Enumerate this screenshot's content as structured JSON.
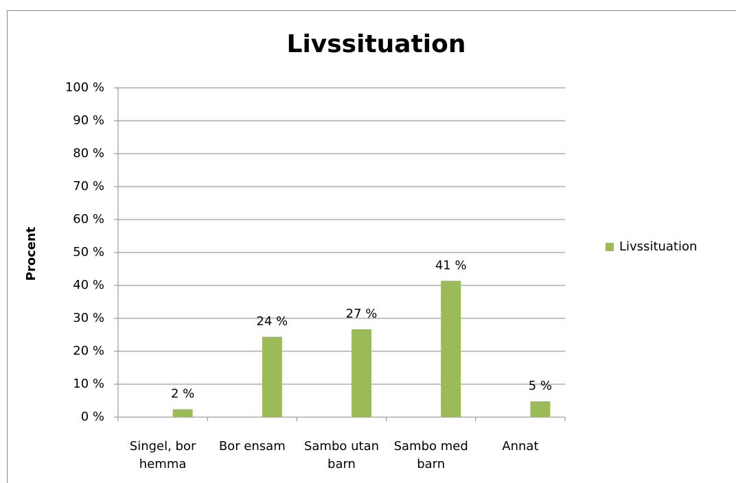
{
  "chart_data": {
    "type": "bar",
    "title": "Livssituation",
    "y_label": "Procent",
    "categories": [
      "Singel, bor hemma",
      "Bor ensam",
      "Sambo utan barn",
      "Sambo med barn",
      "Annat"
    ],
    "series": [
      {
        "name": "Livssituation",
        "color": "#9bbb59",
        "values": [
          2.4,
          24.4,
          26.7,
          41.4,
          4.8
        ],
        "value_labels": [
          "2 %",
          "24 %",
          "27 %",
          "41 %",
          "5 %"
        ]
      }
    ],
    "ylim": [
      0,
      100
    ],
    "yticks": [
      {
        "value": 0,
        "label": "0 %"
      },
      {
        "value": 10,
        "label": "10 %"
      },
      {
        "value": 20,
        "label": "20 %"
      },
      {
        "value": 30,
        "label": "30 %"
      },
      {
        "value": 40,
        "label": "40 %"
      },
      {
        "value": 50,
        "label": "50 %"
      },
      {
        "value": 60,
        "label": "60 %"
      },
      {
        "value": 70,
        "label": "70 %"
      },
      {
        "value": 80,
        "label": "80 %"
      },
      {
        "value": 90,
        "label": "90 %"
      },
      {
        "value": 100,
        "label": "100 %"
      }
    ],
    "grid": true,
    "legend": "right"
  }
}
